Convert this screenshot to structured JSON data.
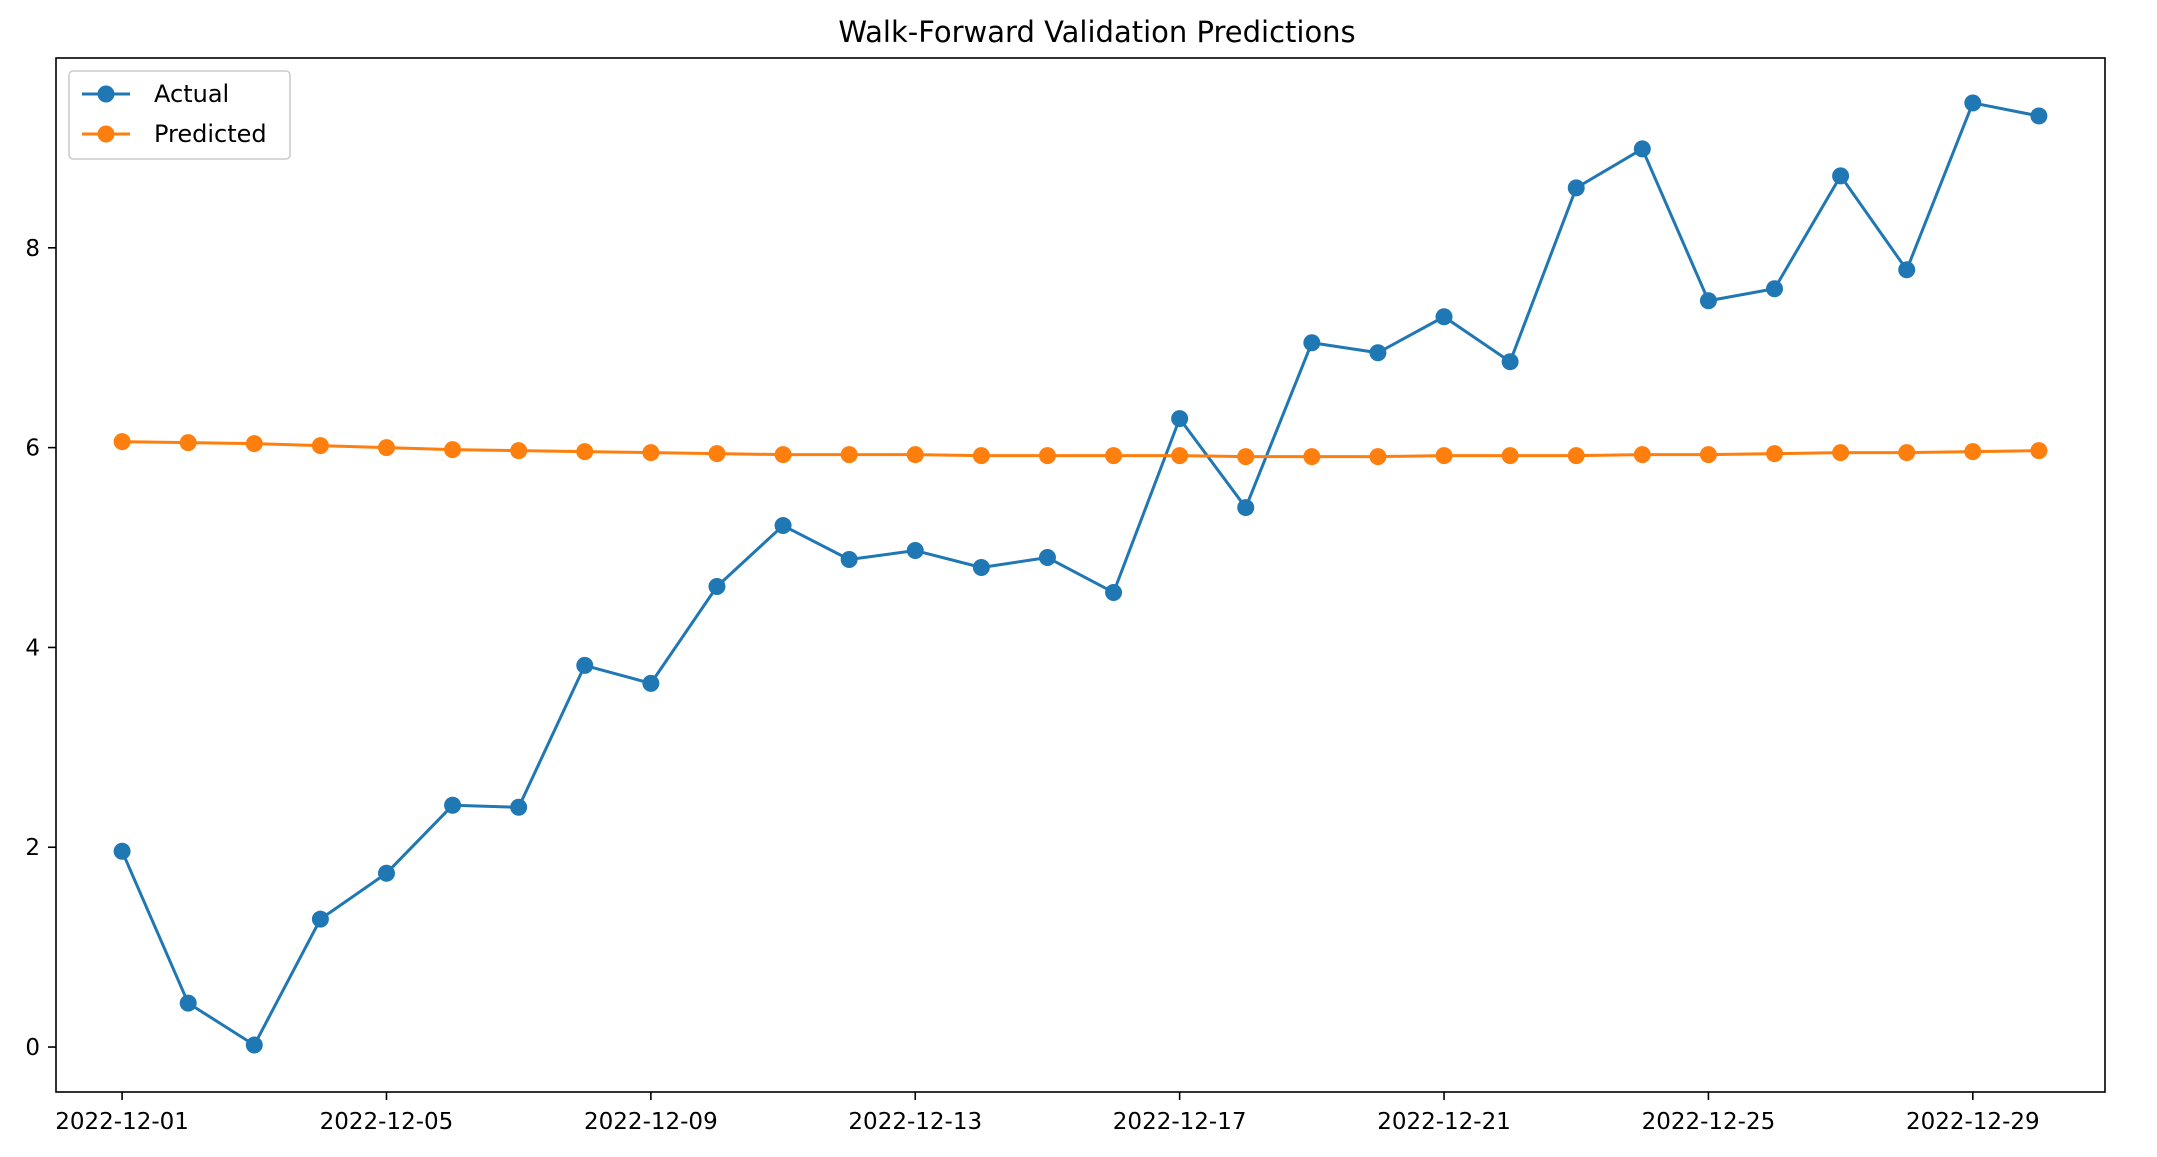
{
  "chart_data": {
    "type": "line",
    "title": "Walk-Forward Validation Predictions",
    "xlabel": "",
    "ylabel": "",
    "x": [
      "2022-12-01",
      "2022-12-02",
      "2022-12-03",
      "2022-12-04",
      "2022-12-05",
      "2022-12-06",
      "2022-12-07",
      "2022-12-08",
      "2022-12-09",
      "2022-12-10",
      "2022-12-11",
      "2022-12-12",
      "2022-12-13",
      "2022-12-14",
      "2022-12-15",
      "2022-12-16",
      "2022-12-17",
      "2022-12-18",
      "2022-12-19",
      "2022-12-20",
      "2022-12-21",
      "2022-12-22",
      "2022-12-23",
      "2022-12-24",
      "2022-12-25",
      "2022-12-26",
      "2022-12-27",
      "2022-12-28",
      "2022-12-29",
      "2022-12-30"
    ],
    "x_ticks": [
      "2022-12-01",
      "2022-12-05",
      "2022-12-09",
      "2022-12-13",
      "2022-12-17",
      "2022-12-21",
      "2022-12-25",
      "2022-12-29"
    ],
    "y_ticks": [
      0,
      2,
      4,
      6,
      8
    ],
    "xlim": [
      "2022-11-30",
      "2022-12-31"
    ],
    "ylim": [
      -0.45,
      9.9
    ],
    "grid": false,
    "legend_position": "top-left",
    "series": [
      {
        "name": "Actual",
        "color": "#1f77b4",
        "values": [
          1.96,
          0.44,
          0.02,
          1.28,
          1.74,
          2.42,
          2.4,
          3.82,
          3.64,
          4.61,
          5.22,
          4.88,
          4.97,
          4.8,
          4.9,
          4.55,
          6.29,
          5.4,
          7.05,
          6.95,
          7.31,
          6.86,
          8.6,
          8.99,
          7.47,
          7.59,
          8.72,
          7.78,
          9.45,
          9.32
        ]
      },
      {
        "name": "Predicted",
        "color": "#ff7f0e",
        "values": [
          6.06,
          6.05,
          6.04,
          6.02,
          6.0,
          5.98,
          5.97,
          5.96,
          5.95,
          5.94,
          5.93,
          5.93,
          5.93,
          5.92,
          5.92,
          5.92,
          5.92,
          5.91,
          5.91,
          5.91,
          5.92,
          5.92,
          5.92,
          5.93,
          5.93,
          5.94,
          5.95,
          5.95,
          5.96,
          5.97
        ]
      }
    ]
  }
}
